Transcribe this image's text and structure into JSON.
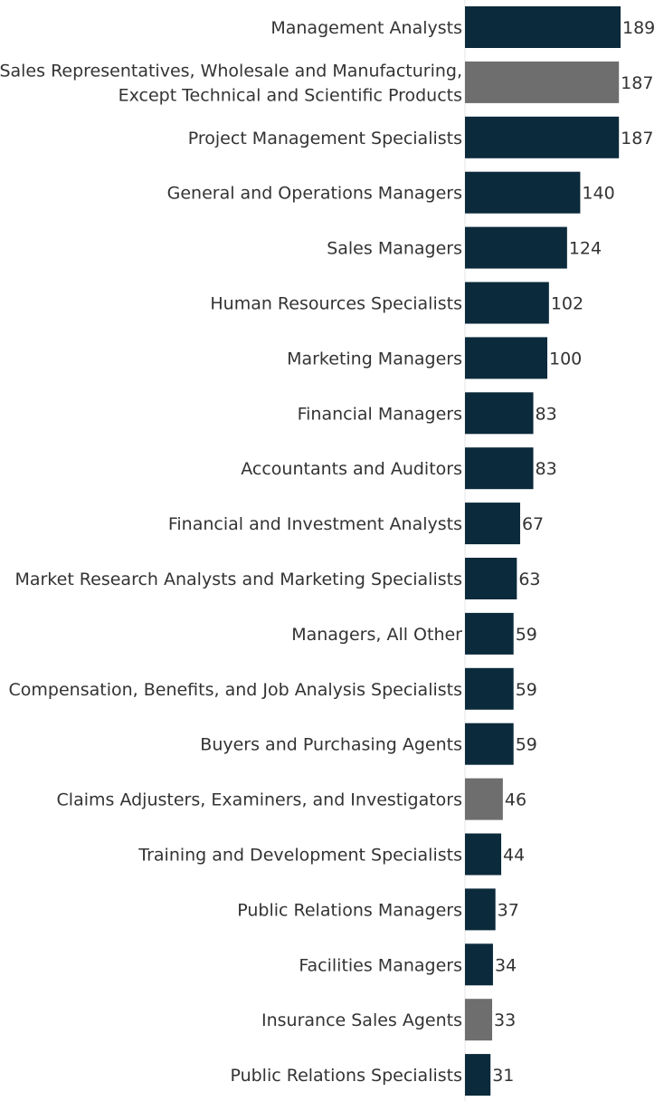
{
  "chart_data": {
    "type": "bar",
    "orientation": "horizontal",
    "title": "",
    "xlabel": "",
    "ylabel": "",
    "xlim": [
      0,
      189
    ],
    "grid": false,
    "legend": "none",
    "colors": {
      "primary": "#0b2a3b",
      "highlight": "#6e6e6e"
    },
    "bars": [
      {
        "label": [
          "Management Analysts"
        ],
        "value": 189,
        "value_label": "189",
        "highlight": false
      },
      {
        "label": [
          "Sales Representatives, Wholesale and Manufacturing,",
          "Except Technical and Scientific Products"
        ],
        "value": 187,
        "value_label": "187",
        "highlight": true
      },
      {
        "label": [
          "Project Management Specialists"
        ],
        "value": 187,
        "value_label": "187",
        "highlight": false
      },
      {
        "label": [
          "General and Operations Managers"
        ],
        "value": 140,
        "value_label": "140",
        "highlight": false
      },
      {
        "label": [
          "Sales Managers"
        ],
        "value": 124,
        "value_label": "124",
        "highlight": false
      },
      {
        "label": [
          "Human Resources Specialists"
        ],
        "value": 102,
        "value_label": "102",
        "highlight": false
      },
      {
        "label": [
          "Marketing Managers"
        ],
        "value": 100,
        "value_label": "100",
        "highlight": false
      },
      {
        "label": [
          "Financial Managers"
        ],
        "value": 83,
        "value_label": "83",
        "highlight": false
      },
      {
        "label": [
          "Accountants and Auditors"
        ],
        "value": 83,
        "value_label": "83",
        "highlight": false
      },
      {
        "label": [
          "Financial and Investment Analysts"
        ],
        "value": 67,
        "value_label": "67",
        "highlight": false
      },
      {
        "label": [
          "Market Research Analysts and Marketing Specialists"
        ],
        "value": 63,
        "value_label": "63",
        "highlight": false
      },
      {
        "label": [
          "Managers, All Other"
        ],
        "value": 59,
        "value_label": "59",
        "highlight": false
      },
      {
        "label": [
          "Compensation, Benefits, and Job Analysis Specialists"
        ],
        "value": 59,
        "value_label": "59",
        "highlight": false
      },
      {
        "label": [
          "Buyers and Purchasing Agents"
        ],
        "value": 59,
        "value_label": "59",
        "highlight": false
      },
      {
        "label": [
          "Claims Adjusters, Examiners, and Investigators"
        ],
        "value": 46,
        "value_label": "46",
        "highlight": true
      },
      {
        "label": [
          "Training and Development Specialists"
        ],
        "value": 44,
        "value_label": "44",
        "highlight": false
      },
      {
        "label": [
          "Public Relations Managers"
        ],
        "value": 37,
        "value_label": "37",
        "highlight": false
      },
      {
        "label": [
          "Facilities Managers"
        ],
        "value": 34,
        "value_label": "34",
        "highlight": false
      },
      {
        "label": [
          "Insurance Sales Agents"
        ],
        "value": 33,
        "value_label": "33",
        "highlight": true
      },
      {
        "label": [
          "Public Relations Specialists"
        ],
        "value": 31,
        "value_label": "31",
        "highlight": false
      }
    ]
  }
}
